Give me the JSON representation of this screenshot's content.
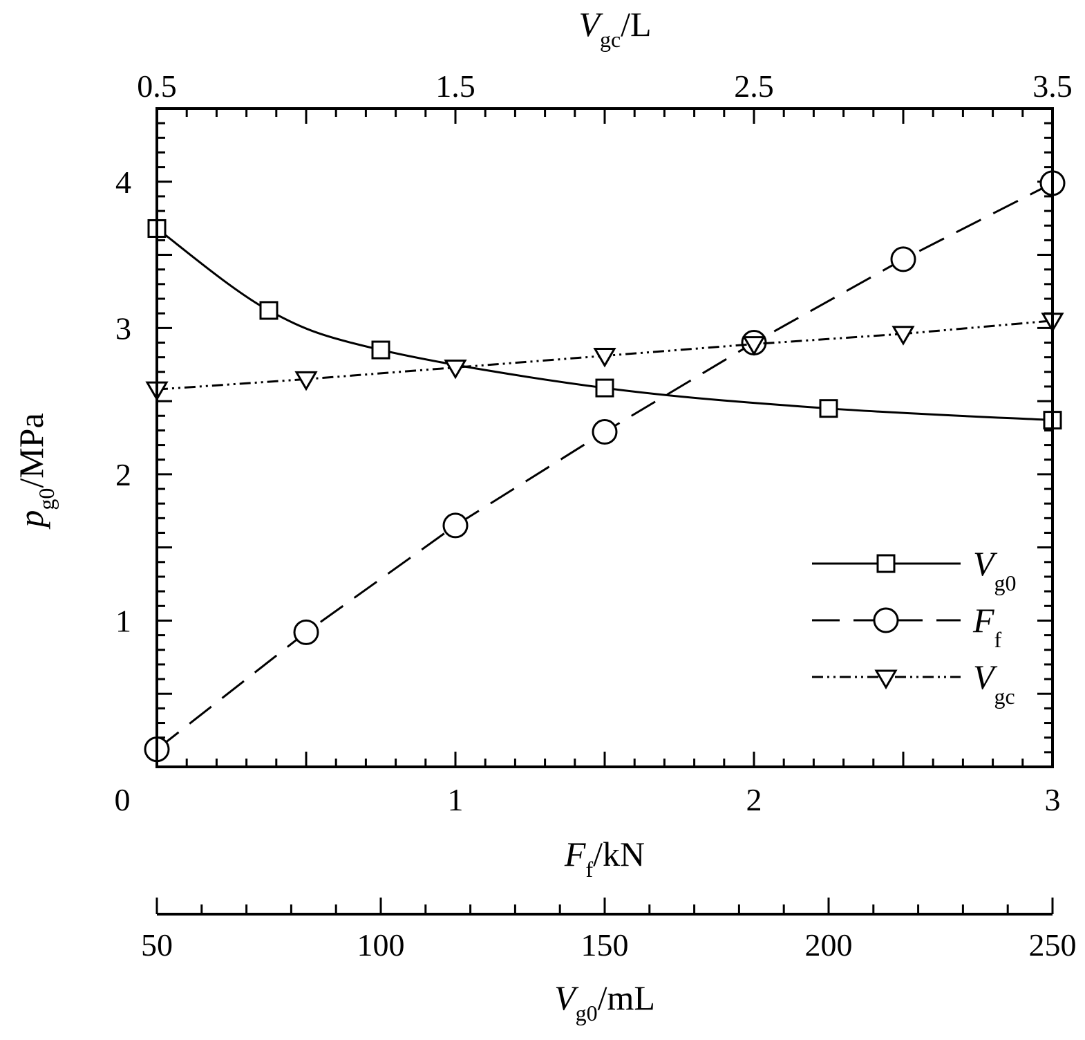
{
  "chart_data": {
    "type": "line",
    "axes": {
      "x_bottom": {
        "label_main": "F",
        "label_sub": "f",
        "label_unit": "/kN",
        "range": [
          0,
          3
        ],
        "ticks": [
          "0",
          "1",
          "2",
          "3"
        ]
      },
      "x_top": {
        "label_main": "V",
        "label_sub": "gc",
        "label_unit": "/L",
        "range": [
          0.5,
          3.5
        ],
        "ticks": [
          "0.5",
          "1.5",
          "2.5",
          "3.5"
        ]
      },
      "x_extra": {
        "label_main": "V",
        "label_sub": "g0",
        "label_unit": "/mL",
        "range": [
          50,
          250
        ],
        "ticks": [
          "50",
          "100",
          "150",
          "200",
          "250"
        ]
      },
      "y_left": {
        "label_main": "p",
        "label_sub": "g0",
        "label_unit": "/MPa",
        "range": [
          0,
          4.5
        ],
        "ticks": [
          "1",
          "2",
          "3",
          "4"
        ]
      }
    },
    "legend": {
      "position": "lower-right"
    },
    "series": [
      {
        "name_main": "V",
        "name_sub": "g0",
        "axis": "x_extra",
        "marker": "square",
        "line_style": "solid",
        "x": [
          50,
          75,
          100,
          150,
          200,
          250
        ],
        "y": [
          3.68,
          3.12,
          2.85,
          2.59,
          2.45,
          2.37
        ]
      },
      {
        "name_main": "F",
        "name_sub": "f",
        "axis": "x_bottom",
        "marker": "circle",
        "line_style": "dashed",
        "x": [
          0,
          0.5,
          1.0,
          1.5,
          2.0,
          2.5,
          3.0
        ],
        "y": [
          0.12,
          0.92,
          1.65,
          2.29,
          2.9,
          3.47,
          3.99
        ]
      },
      {
        "name_main": "V",
        "name_sub": "gc",
        "axis": "x_top",
        "marker": "triangle-down",
        "line_style": "dash-dot-dot",
        "x": [
          0.5,
          1.0,
          1.5,
          2.0,
          2.5,
          3.0,
          3.5
        ],
        "y": [
          2.58,
          2.65,
          2.73,
          2.81,
          2.89,
          2.96,
          3.05
        ]
      }
    ]
  }
}
